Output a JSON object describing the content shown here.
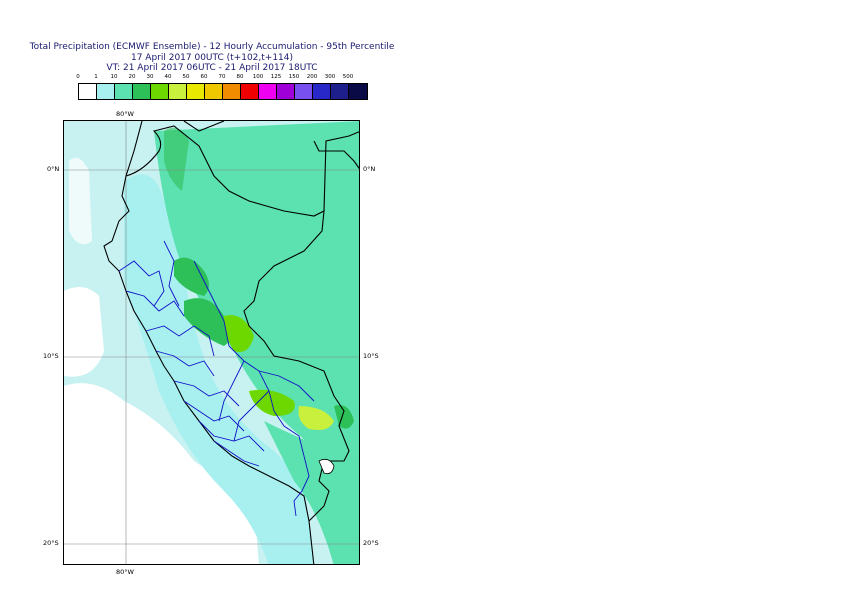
{
  "title": {
    "line1": "Total Precipitation (ECMWF Ensemble) - 12 Hourly Accumulation - 95th Percentile",
    "line2": "17 April 2017 00UTC (t+102,t+114)",
    "line3": "VT: 21 April 2017 06UTC - 21 April 2017 18UTC"
  },
  "legend": {
    "labels": [
      "0",
      "1",
      "10",
      "20",
      "30",
      "40",
      "50",
      "60",
      "70",
      "80",
      "100",
      "125",
      "150",
      "200",
      "300",
      "500"
    ],
    "colors": [
      "#ffffff",
      "#a8f0f0",
      "#5ce1b0",
      "#2ec058",
      "#6cd800",
      "#c8f03c",
      "#e8e800",
      "#f0c800",
      "#f08c00",
      "#f00000",
      "#f000f0",
      "#a000d8",
      "#7850f0",
      "#2828c8",
      "#1e1e8c",
      "#0a0a46"
    ]
  },
  "map": {
    "lon_labels_top": [
      "80°W"
    ],
    "lon_labels_bottom": [
      "80°W"
    ],
    "lat_labels_left": [
      "0°N",
      "10°S",
      "20°S"
    ],
    "lat_labels_right": [
      "0°N",
      "10°S",
      "20°S"
    ]
  }
}
